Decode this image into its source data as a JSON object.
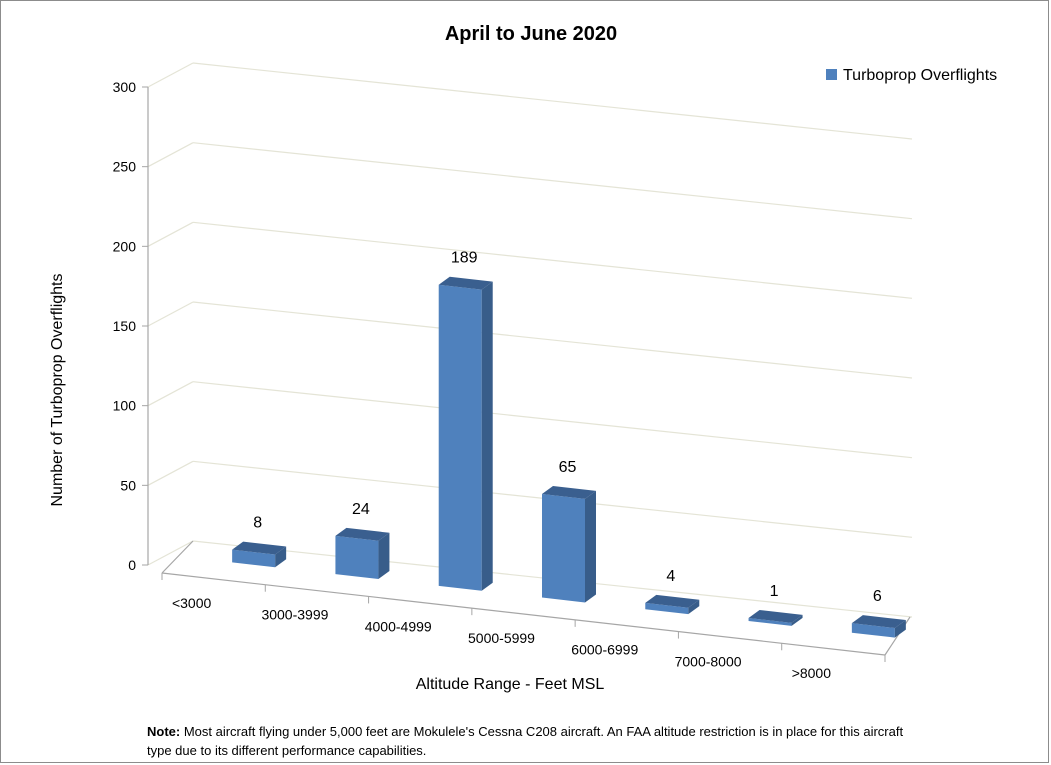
{
  "chart_data": {
    "type": "bar",
    "style": "3d-column",
    "title": "April to June 2020",
    "xlabel": "Altitude Range - Feet MSL",
    "ylabel": "Number of Turboprop Overflights",
    "ylim": [
      0,
      300
    ],
    "yticks": [
      0,
      50,
      100,
      150,
      200,
      250,
      300
    ],
    "grid": true,
    "legend_position": "top-right",
    "categories": [
      "<3000",
      "3000-3999",
      "4000-4999",
      "5000-5999",
      "6000-6999",
      "7000-8000",
      ">8000"
    ],
    "series": [
      {
        "name": "Turboprop Overflights",
        "values": [
          8,
          24,
          189,
          65,
          4,
          1,
          6
        ]
      }
    ],
    "colors": {
      "bar_front": "#4f81bd",
      "bar_side": "#385d8a",
      "bar_top": "#3a5f8f",
      "grid": "#e4e4d6",
      "axis": "#a6a6a6"
    }
  },
  "note": {
    "label": "Note:",
    "text": " Most aircraft flying under 5,000 feet are Mokulele's Cessna C208 aircraft. An FAA altitude restriction is in place for this aircraft type due to its different performance capabilities."
  }
}
